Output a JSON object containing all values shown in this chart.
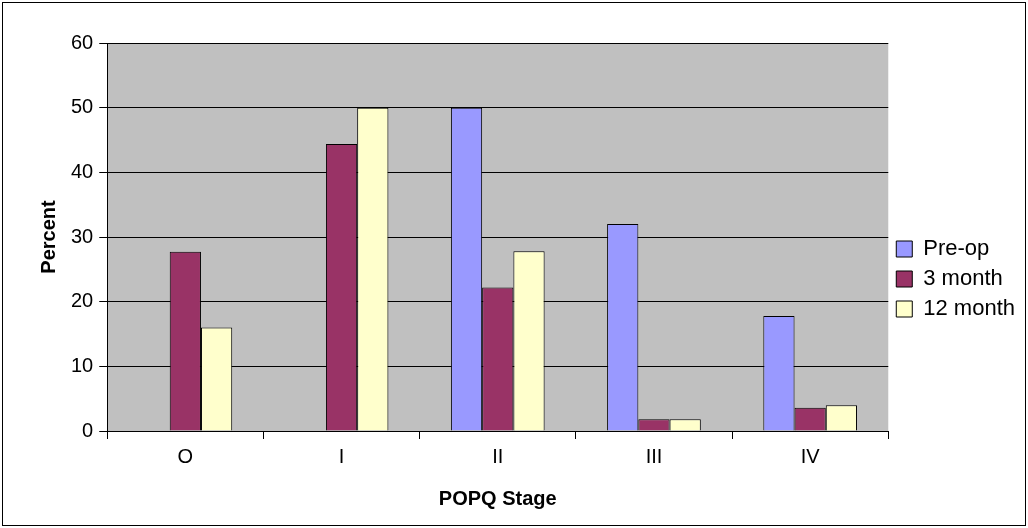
{
  "chart_data": {
    "type": "bar",
    "xlabel": "POPQ Stage",
    "ylabel": "Percent",
    "categories": [
      "O",
      "I",
      "II",
      "III",
      "IV"
    ],
    "series": [
      {
        "name": "Pre-op",
        "color": "#9999ff",
        "values": [
          0,
          0,
          50,
          32,
          17.8
        ]
      },
      {
        "name": "3 month",
        "color": "#993366",
        "values": [
          27.7,
          44.4,
          22.2,
          1.8,
          3.6
        ]
      },
      {
        "name": "12 month",
        "color": "#ffffcc",
        "values": [
          16,
          50,
          27.8,
          1.8,
          4
        ]
      }
    ],
    "ylim": [
      0,
      60
    ],
    "yticks": [
      0,
      10,
      20,
      30,
      40,
      50,
      60
    ],
    "grid": "y",
    "legend": "right"
  }
}
